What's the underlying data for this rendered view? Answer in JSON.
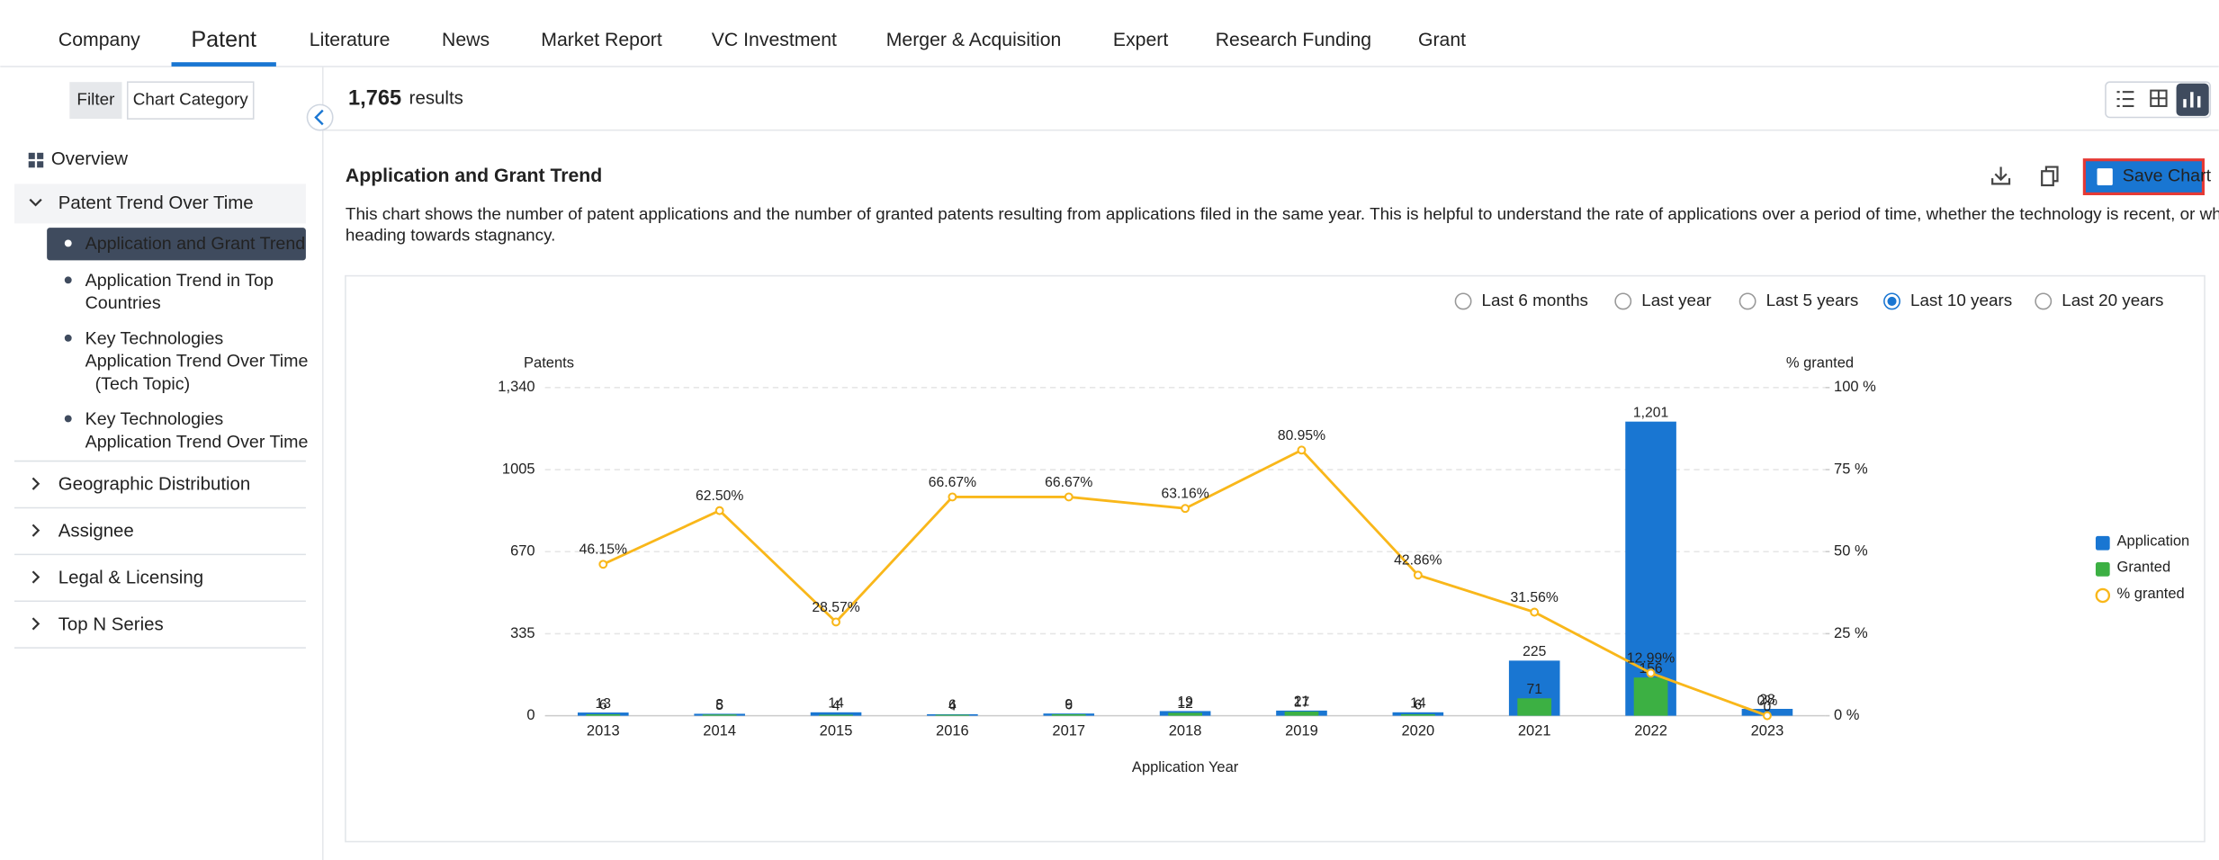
{
  "nav": {
    "tabs": [
      "Company",
      "Patent",
      "Literature",
      "News",
      "Market Report",
      "VC Investment",
      "Merger & Acquisition",
      "Expert",
      "Research Funding",
      "Grant"
    ],
    "active": 1
  },
  "sidebar": {
    "tabs": [
      "Filter",
      "Chart Category"
    ],
    "overview": "Overview",
    "expanded": {
      "label": "Patent Trend Over Time",
      "children": [
        {
          "lines": [
            "Application and Grant Trend"
          ]
        },
        {
          "lines": [
            "Application Trend in Top",
            "Countries"
          ]
        },
        {
          "lines": [
            "Key Technologies",
            "Application Trend Over Time",
            "(Tech Topic)"
          ]
        },
        {
          "lines": [
            "Key Technologies",
            "Application Trend Over Time"
          ]
        }
      ],
      "active": 0
    },
    "groups": [
      "Geographic Distribution",
      "Assignee",
      "Legal & Licensing",
      "Top N Series"
    ]
  },
  "results": {
    "count": "1,765",
    "label": "results"
  },
  "section": {
    "title": "Application and Grant Trend",
    "description": [
      "This chart shows the number of patent applications and the number of granted patents resulting from applications filed in the same year. This is helpful to understand the rate of applications over a period of time, whether the technology is recent, or whether it is",
      "heading towards stagnancy."
    ],
    "save": "Save Chart",
    "ranges": [
      "Last 6 months",
      "Last year",
      "Last 5 years",
      "Last 10 years",
      "Last 20 years"
    ],
    "selected_range": 3
  },
  "chart_data": {
    "type": "combo",
    "x_label": "Application Year",
    "y_label": "Patents",
    "y2_label": "% granted",
    "categories": [
      "2013",
      "2014",
      "2015",
      "2016",
      "2017",
      "2018",
      "2019",
      "2020",
      "2021",
      "2022",
      "2023"
    ],
    "ylim": [
      0,
      1340
    ],
    "yticks": [
      0,
      335,
      670,
      1005,
      {
        "value": 1340,
        "label": "1,340"
      }
    ],
    "y2lim": [
      0,
      100
    ],
    "y2ticks": [
      {
        "value": 0,
        "label": "0 %"
      },
      {
        "value": 25,
        "label": "25 %"
      },
      {
        "value": 50,
        "label": "50 %"
      },
      {
        "value": 75,
        "label": "75 %"
      },
      {
        "value": 100,
        "label": "100 %"
      }
    ],
    "grid": true,
    "legend": "right",
    "series": [
      {
        "name": "Application",
        "type": "bar",
        "color": "#1976d2",
        "values": [
          13,
          8,
          14,
          6,
          9,
          19,
          21,
          14,
          225,
          1201,
          28
        ],
        "value_labels": [
          "13",
          "8",
          "14",
          "6",
          "9",
          "19",
          "21",
          "14",
          "225",
          "1,201",
          "28"
        ]
      },
      {
        "name": "Granted",
        "type": "bar",
        "color": "#3cb043",
        "values": [
          6,
          5,
          4,
          4,
          6,
          12,
          17,
          6,
          71,
          156,
          0
        ],
        "value_labels": [
          "6",
          "5",
          "4",
          "4",
          "6",
          "12",
          "17",
          "6",
          "71",
          "156",
          "0"
        ]
      },
      {
        "name": "% granted",
        "type": "line",
        "axis": "y2",
        "color": "#f9b71a",
        "values": [
          46.15,
          62.5,
          28.57,
          66.67,
          66.67,
          63.16,
          80.95,
          42.86,
          31.56,
          12.99,
          0
        ],
        "value_labels": [
          "46.15%",
          "62.50%",
          "28.57%",
          "66.67%",
          "66.67%",
          "63.16%",
          "80.95%",
          "42.86%",
          "31.56%",
          "12.99%",
          "0%"
        ]
      }
    ]
  }
}
